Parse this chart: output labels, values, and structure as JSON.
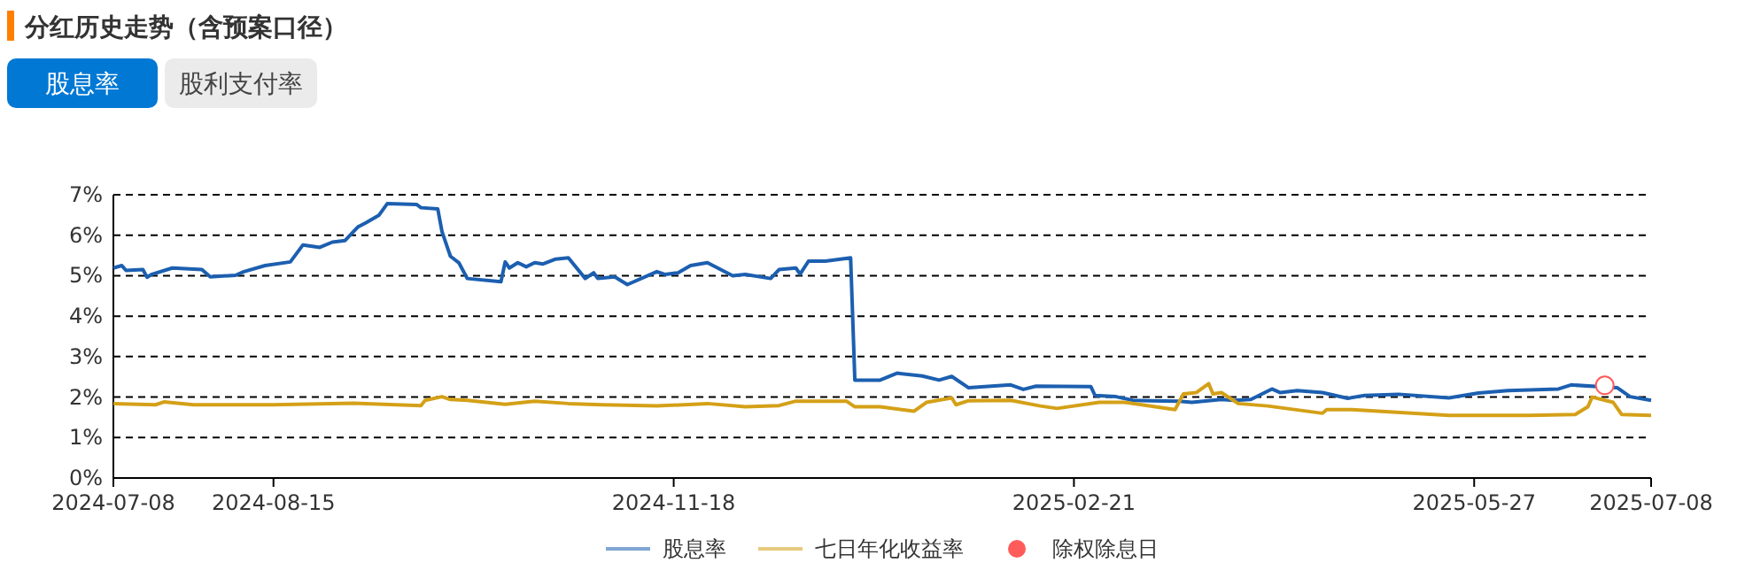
{
  "chart_data": {
    "type": "line",
    "title": "分红历史走势（含预案口径）",
    "annotations": [
      "股息率",
      "股利支付率"
    ],
    "xlim": [
      "2024-07-08",
      "2025-07-08"
    ],
    "xticks": [
      "2024-07-08",
      "2024-08-15",
      "2024-11-18",
      "2025-02-21",
      "2025-05-27",
      "2025-07-08"
    ],
    "ylim": [
      0,
      7
    ],
    "yticks": [
      {
        "value": 0,
        "label": "0%"
      },
      {
        "value": 1,
        "label": "1%"
      },
      {
        "value": 2,
        "label": "2%"
      },
      {
        "value": 3,
        "label": "3%"
      },
      {
        "value": 4,
        "label": "4%"
      },
      {
        "value": 5,
        "label": "5%"
      },
      {
        "value": 6,
        "label": "6%"
      },
      {
        "value": 7,
        "label": "7%"
      }
    ],
    "grid": "y",
    "legend": "bottom",
    "series": [
      {
        "name": "股息率",
        "color": "#1c5fb0",
        "x": [
          "2024-07-08",
          "2024-07-10",
          "2024-07-11",
          "2024-07-15",
          "2024-07-16",
          "2024-07-17",
          "2024-07-22",
          "2024-07-29",
          "2024-07-31",
          "2024-08-06",
          "2024-08-08",
          "2024-08-13",
          "2024-08-19",
          "2024-08-22",
          "2024-08-26",
          "2024-08-29",
          "2024-09-01",
          "2024-09-04",
          "2024-09-06",
          "2024-09-09",
          "2024-09-11",
          "2024-09-18",
          "2024-09-19",
          "2024-09-23",
          "2024-09-24",
          "2024-09-26",
          "2024-09-28",
          "2024-09-30",
          "2024-10-08",
          "2024-10-09",
          "2024-10-10",
          "2024-10-12",
          "2024-10-14",
          "2024-10-16",
          "2024-10-18",
          "2024-10-21",
          "2024-10-24",
          "2024-10-28",
          "2024-10-30",
          "2024-10-31",
          "2024-11-04",
          "2024-11-07",
          "2024-11-14",
          "2024-11-16",
          "2024-11-19",
          "2024-11-22",
          "2024-11-26",
          "2024-12-02",
          "2024-12-05",
          "2024-12-11",
          "2024-12-13",
          "2024-12-17",
          "2024-12-18",
          "2024-12-20",
          "2024-12-24",
          "2024-12-30",
          "2024-12-31",
          "2025-01-06",
          "2025-01-10",
          "2025-01-16",
          "2025-01-20",
          "2025-01-23",
          "2025-01-27",
          "2025-02-06",
          "2025-02-09",
          "2025-02-12",
          "2025-02-25",
          "2025-02-26",
          "2025-03-03",
          "2025-03-07",
          "2025-03-11",
          "2025-03-18",
          "2025-03-21",
          "2025-03-28",
          "2025-03-31",
          "2025-04-04",
          "2025-04-09",
          "2025-04-11",
          "2025-04-15",
          "2025-04-21",
          "2025-04-27",
          "2025-05-01",
          "2025-05-09",
          "2025-05-21",
          "2025-05-28",
          "2025-06-04",
          "2025-06-16",
          "2025-06-19",
          "2025-06-30",
          "2025-07-03",
          "2025-07-08"
        ],
        "values": [
          5.19,
          5.25,
          5.13,
          5.15,
          4.96,
          5.03,
          5.19,
          5.15,
          4.97,
          5.01,
          5.1,
          5.25,
          5.34,
          5.76,
          5.7,
          5.83,
          5.87,
          6.2,
          6.31,
          6.49,
          6.78,
          6.76,
          6.68,
          6.65,
          6.09,
          5.48,
          5.32,
          4.93,
          4.85,
          5.34,
          5.19,
          5.32,
          5.22,
          5.32,
          5.29,
          5.41,
          5.44,
          4.93,
          5.07,
          4.93,
          4.97,
          4.78,
          5.1,
          5.03,
          5.07,
          5.25,
          5.32,
          5.0,
          5.03,
          4.93,
          5.15,
          5.19,
          5.04,
          5.36,
          5.36,
          5.44,
          2.42,
          2.42,
          2.59,
          2.52,
          2.42,
          2.51,
          2.23,
          2.3,
          2.19,
          2.27,
          2.26,
          2.04,
          2.01,
          1.92,
          1.91,
          1.9,
          1.87,
          1.94,
          1.92,
          1.94,
          2.2,
          2.11,
          2.16,
          2.11,
          1.97,
          2.04,
          2.07,
          1.98,
          2.1,
          2.16,
          2.2,
          2.3,
          2.23,
          2.01,
          1.92
        ]
      },
      {
        "name": "七日年化收益率",
        "color": "#d4a017",
        "x": [
          "2024-07-08",
          "2024-07-18",
          "2024-07-20",
          "2024-07-27",
          "2024-08-15",
          "2024-09-03",
          "2024-09-19",
          "2024-09-20",
          "2024-09-24",
          "2024-09-26",
          "2024-09-30",
          "2024-10-09",
          "2024-10-16",
          "2024-10-24",
          "2024-11-01",
          "2024-11-14",
          "2024-11-26",
          "2024-12-05",
          "2024-12-13",
          "2024-12-17",
          "2024-12-29",
          "2024-12-31",
          "2025-01-06",
          "2025-01-14",
          "2025-01-17",
          "2025-01-23",
          "2025-01-24",
          "2025-01-27",
          "2025-02-06",
          "2025-02-13",
          "2025-02-17",
          "2025-02-27",
          "2025-03-05",
          "2025-03-17",
          "2025-03-19",
          "2025-03-22",
          "2025-03-25",
          "2025-03-26",
          "2025-03-28",
          "2025-04-01",
          "2025-04-08",
          "2025-04-21",
          "2025-04-22",
          "2025-04-28",
          "2025-05-21",
          "2025-06-09",
          "2025-06-20",
          "2025-06-23",
          "2025-06-24",
          "2025-06-29",
          "2025-07-01",
          "2025-07-08"
        ],
        "values": [
          1.84,
          1.81,
          1.88,
          1.81,
          1.81,
          1.85,
          1.79,
          1.92,
          2.01,
          1.94,
          1.92,
          1.82,
          1.9,
          1.84,
          1.81,
          1.78,
          1.84,
          1.76,
          1.79,
          1.9,
          1.9,
          1.76,
          1.76,
          1.65,
          1.87,
          1.98,
          1.81,
          1.91,
          1.92,
          1.78,
          1.72,
          1.87,
          1.87,
          1.69,
          2.08,
          2.11,
          2.33,
          2.08,
          2.11,
          1.84,
          1.78,
          1.6,
          1.69,
          1.69,
          1.55,
          1.55,
          1.57,
          1.76,
          2.0,
          1.87,
          1.57,
          1.55
        ]
      },
      {
        "name": "除权除息日",
        "type": "scatter",
        "marker": "circle",
        "color": "#ff5b5b",
        "x": [
          "2025-06-27"
        ],
        "values": [
          2.29
        ]
      }
    ]
  }
}
